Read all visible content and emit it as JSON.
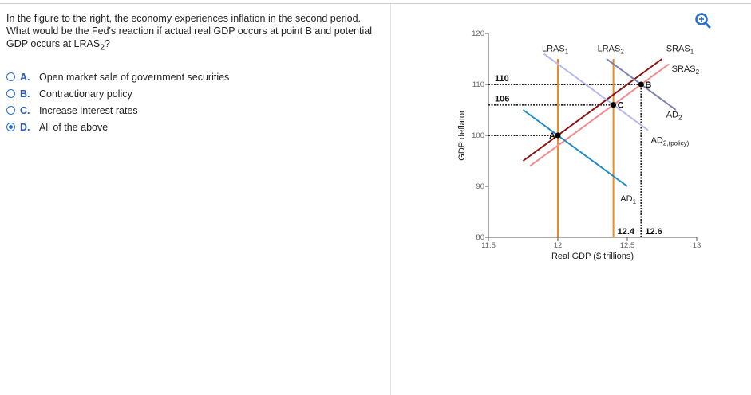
{
  "question": {
    "text_before": "In the figure to the right, the economy experiences inflation in the second period. What would be the Fed's reaction if actual real GDP occurs at point B and potential GDP occurs at LRAS",
    "text_sub": "2",
    "text_after": "?"
  },
  "options": [
    {
      "letter": "A.",
      "label": "Open market sale of government securities",
      "selected": false
    },
    {
      "letter": "B.",
      "label": "Contractionary policy",
      "selected": false
    },
    {
      "letter": "C.",
      "label": "Increase interest rates",
      "selected": false
    },
    {
      "letter": "D.",
      "label": "All of the above",
      "selected": true
    }
  ],
  "zoom_icon": "zoom-in-icon",
  "colors": {
    "accent": "#2a6fd0",
    "lras": "#f08a1c",
    "sras1": "#8b1010",
    "sras2": "#f58a8a",
    "ad1": "#1f8ac8",
    "ad2": "#8080b0",
    "ad2_policy": "#b8b8f0"
  },
  "chart_data": {
    "type": "line",
    "xlabel": "Real GDP ($ trillions)",
    "ylabel": "GDP deflator",
    "xlim": [
      11.5,
      13
    ],
    "ylim": [
      80,
      120
    ],
    "xticks": [
      "11.5",
      "12",
      "12.5",
      "13"
    ],
    "yticks": [
      "80",
      "90",
      "100",
      "110",
      "120"
    ],
    "lines": [
      {
        "name": "LRAS",
        "sub": "1",
        "color": "#f08a1c",
        "points": [
          [
            12,
            80
          ],
          [
            12,
            115
          ]
        ]
      },
      {
        "name": "LRAS",
        "sub": "2",
        "color": "#f08a1c",
        "points": [
          [
            12.4,
            80
          ],
          [
            12.4,
            115
          ]
        ]
      },
      {
        "name": "SRAS",
        "sub": "1",
        "color": "#8b1010",
        "points": [
          [
            11.75,
            95
          ],
          [
            12.75,
            115
          ]
        ]
      },
      {
        "name": "SRAS",
        "sub": "2",
        "color": "#f58a8a",
        "points": [
          [
            11.8,
            94
          ],
          [
            12.8,
            114
          ]
        ]
      },
      {
        "name": "AD",
        "sub": "1",
        "color": "#1f8ac8",
        "points": [
          [
            11.75,
            105
          ],
          [
            12.5,
            90
          ]
        ]
      },
      {
        "name": "AD",
        "sub": "2",
        "color": "#8080b0",
        "points": [
          [
            12.35,
            115
          ],
          [
            12.85,
            105
          ]
        ]
      },
      {
        "name": "AD",
        "sub": "2,(policy)",
        "color": "#b8b8f0",
        "points": [
          [
            11.9,
            116
          ],
          [
            12.65,
            101
          ]
        ]
      }
    ],
    "points": [
      {
        "label": "A",
        "x": 12,
        "y": 100
      },
      {
        "label": "B",
        "x": 12.6,
        "y": 110
      },
      {
        "label": "C",
        "x": 12.4,
        "y": 106
      }
    ],
    "annotations": {
      "y110": "110",
      "y106": "106",
      "x124": "12.4",
      "x126": "12.6"
    }
  }
}
